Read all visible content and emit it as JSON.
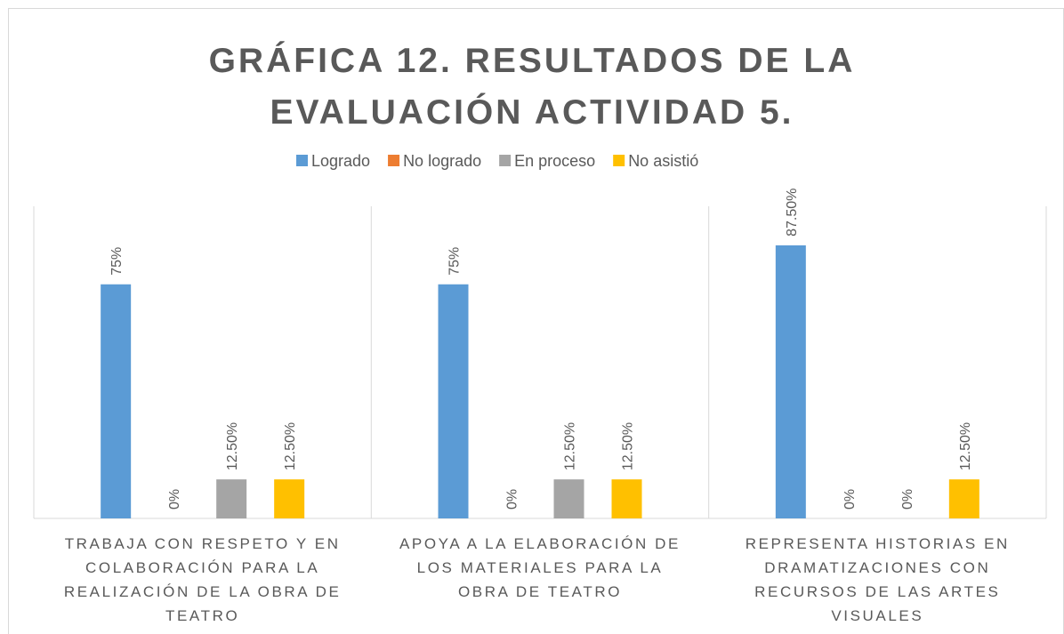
{
  "chart_data": {
    "type": "bar",
    "title": "GRÁFICA 12. RESULTADOS DE LA EVALUACIÓN ACTIVIDAD 5.",
    "categories": [
      "TRABAJA CON RESPETO Y EN COLABORACIÓN PARA LA REALIZACIÓN DE LA OBRA DE TEATRO",
      "APOYA A LA ELABORACIÓN DE LOS MATERIALES PARA LA OBRA DE TEATRO",
      "REPRESENTA HISTORIAS EN DRAMATIZACIONES CON RECURSOS DE LAS ARTES VISUALES"
    ],
    "series": [
      {
        "name": "Logrado",
        "color": "#5b9bd5",
        "values": [
          75,
          75,
          87.5
        ],
        "value_labels": [
          "75%",
          "75%",
          "87.50%"
        ]
      },
      {
        "name": "No logrado",
        "color": "#ed7d31",
        "values": [
          0,
          0,
          0
        ],
        "value_labels": [
          "0%",
          "0%",
          "0%"
        ]
      },
      {
        "name": "En proceso",
        "color": "#a5a5a5",
        "values": [
          12.5,
          12.5,
          0
        ],
        "value_labels": [
          "12.50%",
          "12.50%",
          "0%"
        ]
      },
      {
        "name": "No asistió",
        "color": "#ffc000",
        "values": [
          12.5,
          12.5,
          12.5
        ],
        "value_labels": [
          "12.50%",
          "12.50%",
          "12.50%"
        ]
      }
    ]
  }
}
